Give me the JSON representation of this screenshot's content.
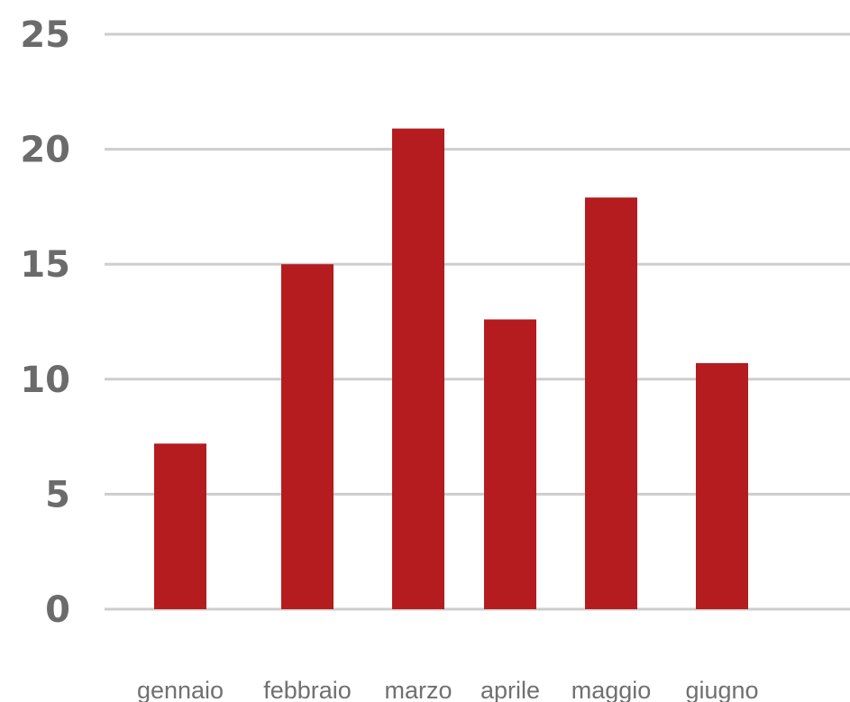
{
  "chart_data": {
    "type": "bar",
    "title": "",
    "xlabel": "",
    "ylabel": "",
    "categories": [
      "gennaio",
      "febbraio",
      "marzo",
      "aprile",
      "maggio",
      "giugno"
    ],
    "values": [
      7.2,
      15.0,
      20.9,
      12.6,
      17.9,
      10.7
    ],
    "ylim": [
      0,
      25
    ],
    "yticks": [
      0,
      5,
      10,
      15,
      20,
      25
    ],
    "ytick_labels": [
      "0",
      "5",
      "10",
      "15",
      "20",
      "25"
    ],
    "grid": true,
    "legend": "none",
    "bar_color": "#b41c1f"
  }
}
